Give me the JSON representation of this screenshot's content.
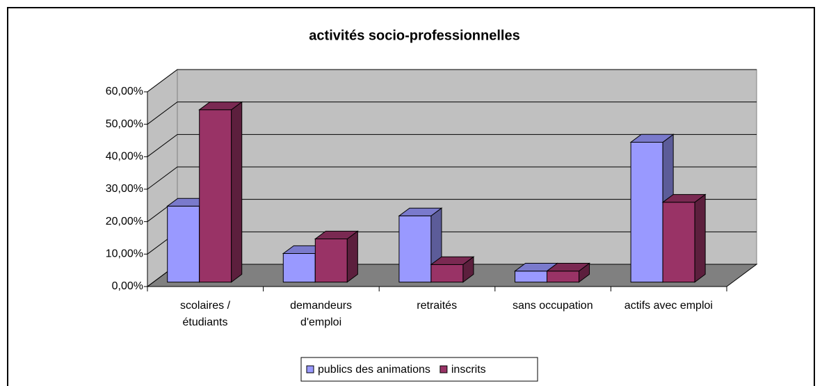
{
  "chart_data": {
    "type": "bar3d",
    "title": "activités socio-professionnelles",
    "categories": [
      "scolaires /\nétudiants",
      "demandeurs\nd'emploi",
      "retraités",
      "sans occupation",
      "actifs avec emploi"
    ],
    "series": [
      {
        "name": "publics des animations",
        "color": "#9999ff",
        "values": [
          23.4,
          8.8,
          20.4,
          3.4,
          43.1
        ]
      },
      {
        "name": "inscrits",
        "color": "#993366",
        "values": [
          53.1,
          13.3,
          5.4,
          3.4,
          24.6
        ]
      }
    ],
    "ylim": [
      0,
      60
    ],
    "yticks": [
      {
        "value": 0,
        "label": "0,00%"
      },
      {
        "value": 10,
        "label": "10,00%"
      },
      {
        "value": 20,
        "label": "20,00%"
      },
      {
        "value": 30,
        "label": "30,00%"
      },
      {
        "value": 40,
        "label": "40,00%"
      },
      {
        "value": 50,
        "label": "50,00%"
      },
      {
        "value": 60,
        "label": "60,00%"
      }
    ],
    "grid": true,
    "legend": "bottom"
  }
}
